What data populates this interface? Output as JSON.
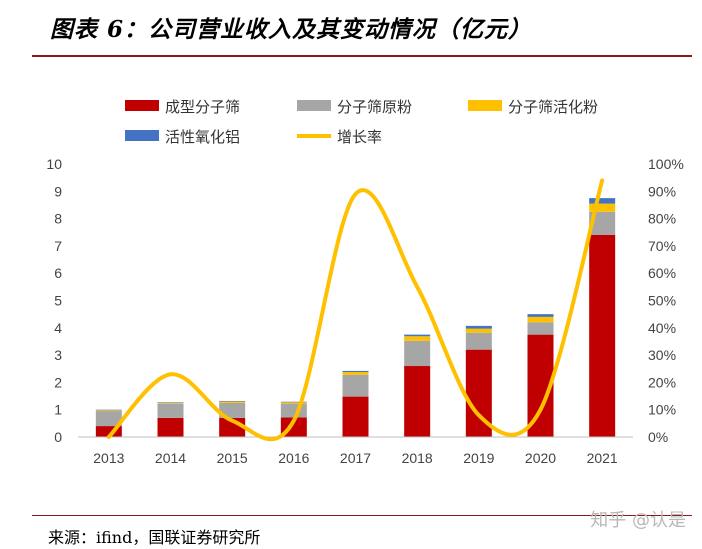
{
  "header": {
    "title": "图表 6：公司营业收入及其变动情况（亿元）"
  },
  "footer": {
    "source": "来源：ifind，国联证券研究所",
    "watermark": "知乎 @认是"
  },
  "chart_data": {
    "type": "bar",
    "stacked": true,
    "categories": [
      "2013",
      "2014",
      "2015",
      "2016",
      "2017",
      "2018",
      "2019",
      "2020",
      "2021"
    ],
    "series": [
      {
        "name": "成型分子筛",
        "kind": "bar",
        "color": "#c00000",
        "values": [
          0.4,
          0.7,
          0.7,
          0.72,
          1.48,
          2.6,
          3.2,
          3.75,
          7.4
        ]
      },
      {
        "name": "分子筛原粉",
        "kind": "bar",
        "color": "#a6a6a6",
        "values": [
          0.55,
          0.52,
          0.55,
          0.5,
          0.8,
          0.92,
          0.62,
          0.45,
          0.85
        ]
      },
      {
        "name": "分子筛活化粉",
        "kind": "bar",
        "color": "#ffc000",
        "values": [
          0.03,
          0.03,
          0.05,
          0.05,
          0.1,
          0.17,
          0.15,
          0.2,
          0.3
        ]
      },
      {
        "name": "活性氧化铝",
        "kind": "bar",
        "color": "#4472c4",
        "values": [
          0.02,
          0.02,
          0.02,
          0.02,
          0.04,
          0.06,
          0.1,
          0.1,
          0.2
        ]
      },
      {
        "name": "增长率",
        "kind": "line",
        "axis": "right",
        "color": "#ffc000",
        "values": [
          0,
          23,
          6,
          6,
          89,
          55,
          8,
          10,
          94
        ]
      }
    ],
    "y_left": {
      "min": 0,
      "max": 10,
      "ticks": [
        "0",
        "1",
        "2",
        "3",
        "4",
        "5",
        "6",
        "7",
        "8",
        "9",
        "10"
      ]
    },
    "y_right": {
      "min": 0,
      "max": 100,
      "ticks": [
        "0%",
        "10%",
        "20%",
        "30%",
        "40%",
        "50%",
        "60%",
        "70%",
        "80%",
        "90%",
        "100%"
      ]
    },
    "legend_position": "top",
    "grid": false
  }
}
